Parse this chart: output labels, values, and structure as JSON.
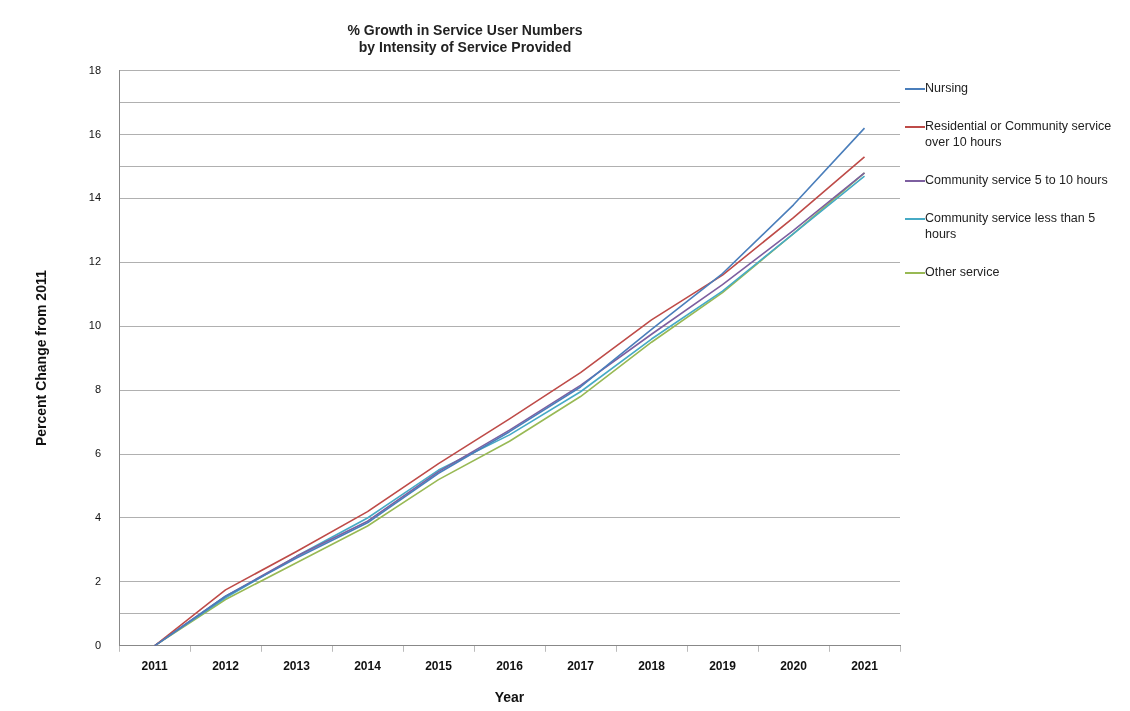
{
  "chart_data": {
    "type": "line",
    "title": "% Growth in Service User Numbers\nby Intensity of Service Provided",
    "xlabel": "Year",
    "ylabel": "Percent Change from 2011",
    "categories": [
      "2011",
      "2012",
      "2013",
      "2014",
      "2015",
      "2016",
      "2017",
      "2018",
      "2019",
      "2020",
      "2021"
    ],
    "series": [
      {
        "name": "Nursing",
        "color": "#4a7ebb",
        "values": [
          0,
          1.55,
          2.75,
          3.85,
          5.4,
          6.7,
          8.1,
          9.9,
          11.65,
          13.8,
          16.2
        ]
      },
      {
        "name": "Residential or Community service over 10 hours",
        "color": "#be4b48",
        "values": [
          0,
          1.75,
          2.95,
          4.2,
          5.7,
          7.1,
          8.55,
          10.2,
          11.6,
          13.4,
          15.3
        ]
      },
      {
        "name": "Community service 5 to 10 hours",
        "color": "#7d5fa0",
        "values": [
          0,
          1.55,
          2.8,
          3.9,
          5.45,
          6.75,
          8.15,
          9.75,
          11.3,
          13.0,
          14.8
        ]
      },
      {
        "name": "Community service less than 5 hours",
        "color": "#46aac5",
        "values": [
          0,
          1.5,
          2.8,
          4.0,
          5.5,
          6.6,
          7.95,
          9.6,
          11.1,
          12.9,
          14.7
        ]
      },
      {
        "name": "Other service",
        "color": "#98b954",
        "values": [
          0,
          1.45,
          2.6,
          3.75,
          5.2,
          6.4,
          7.8,
          9.5,
          11.05,
          12.9,
          14.8
        ]
      }
    ],
    "ylim": [
      0,
      18
    ],
    "yticks": [
      0,
      {
        "value": 1,
        "label": null
      },
      2,
      4,
      6,
      8,
      10,
      12,
      14,
      {
        "value": 15,
        "label": null
      },
      16,
      {
        "value": 17,
        "label": null
      },
      18
    ],
    "grid": "y",
    "legend": "right",
    "marker": "none",
    "line_style": "solid"
  }
}
